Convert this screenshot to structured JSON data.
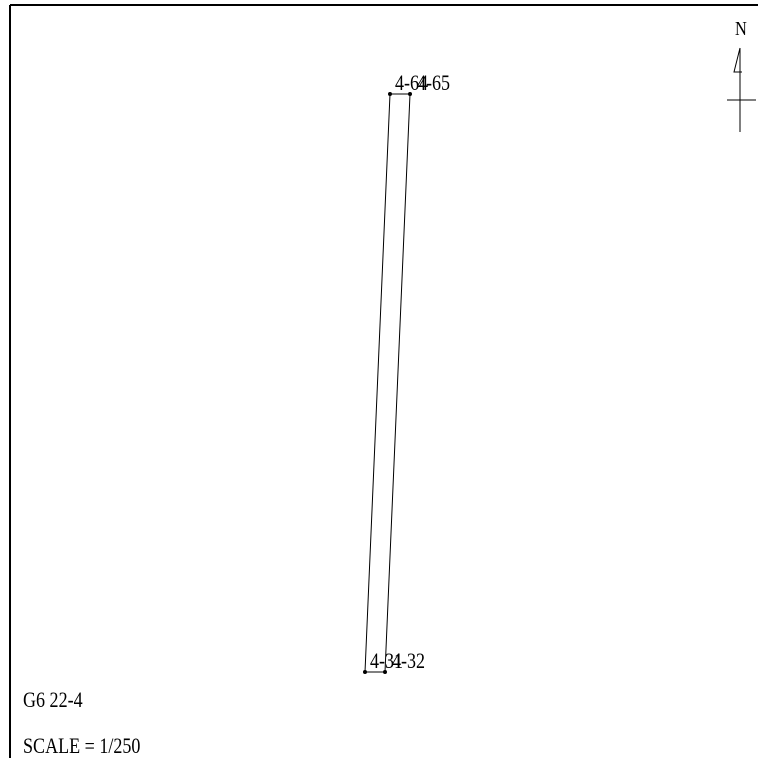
{
  "drawing": {
    "sheet_id": "G6 22-4",
    "scale_text": "SCALE = 1/250",
    "north_label": "N",
    "points": {
      "top_left": "4-64",
      "top_right": "4-65",
      "bottom_left": "4-31",
      "bottom_right": "4-32"
    },
    "colors": {
      "line": "#000000",
      "background": "#ffffff"
    }
  }
}
